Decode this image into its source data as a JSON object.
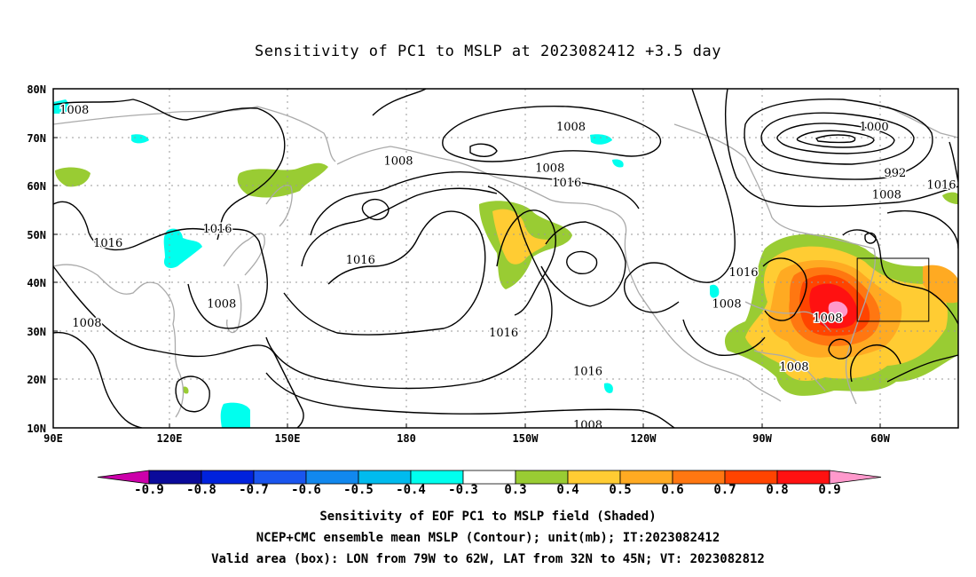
{
  "title": "Sensitivity of PC1 to MSLP at 2023082412 +3.5 day",
  "axes": {
    "lon_labels": [
      "90E",
      "120E",
      "150E",
      "180",
      "150W",
      "120W",
      "90W",
      "60W"
    ],
    "lat_labels": [
      "80N",
      "70N",
      "60N",
      "50N",
      "40N",
      "30N",
      "20N",
      "10N"
    ]
  },
  "contour_labels": [
    {
      "text": "1008",
      "lon": 95,
      "lat": 75.5
    },
    {
      "text": "1008",
      "lon": 172,
      "lat": 65
    },
    {
      "text": "1008",
      "lon": 213,
      "lat": 72
    },
    {
      "text": "1008",
      "lon": 208,
      "lat": 63.5
    },
    {
      "text": "1016",
      "lon": 212,
      "lat": 60.5
    },
    {
      "text": "1000",
      "lon": 285,
      "lat": 72
    },
    {
      "text": "992",
      "lon": 290,
      "lat": 62.5
    },
    {
      "text": "1008",
      "lon": 288,
      "lat": 58
    },
    {
      "text": "1016",
      "lon": 301,
      "lat": 60
    },
    {
      "text": "1016",
      "lon": 103,
      "lat": 48
    },
    {
      "text": "1016",
      "lon": 129,
      "lat": 51
    },
    {
      "text": "1016",
      "lon": 163,
      "lat": 44.5
    },
    {
      "text": "1016",
      "lon": 197,
      "lat": 29.5
    },
    {
      "text": "1016",
      "lon": 217,
      "lat": 21.5
    },
    {
      "text": "1016",
      "lon": 254,
      "lat": 42
    },
    {
      "text": "1008",
      "lon": 250,
      "lat": 35.5
    },
    {
      "text": "1008",
      "lon": 274,
      "lat": 32.5
    },
    {
      "text": "1008",
      "lon": 266,
      "lat": 22.5
    },
    {
      "text": "1008",
      "lon": 130,
      "lat": 35.5
    },
    {
      "text": "1008",
      "lon": 98,
      "lat": 31.5
    },
    {
      "text": "1008",
      "lon": 217,
      "lat": 10.5
    }
  ],
  "colorbar": {
    "colors": [
      "#cc00aa",
      "#0a0a9a",
      "#0022dd",
      "#1a55ee",
      "#1188ee",
      "#00bbee",
      "#00ffee",
      "#ffffff",
      "#99cc33",
      "#ffcc33",
      "#ffaa22",
      "#ff7711",
      "#ff4400",
      "#ff1111",
      "#ff99cc"
    ],
    "labels": [
      "-0.9",
      "-0.8",
      "-0.7",
      "-0.6",
      "-0.5",
      "-0.4",
      "-0.3",
      "0.3",
      "0.4",
      "0.5",
      "0.6",
      "0.7",
      "0.8",
      "0.9"
    ]
  },
  "captions": {
    "line1": "Sensitivity of EOF PC1 to MSLP field (Shaded)",
    "line2": "NCEP+CMC ensemble mean MSLP (Contour); unit(mb); IT:2023082412",
    "line3": "Valid area (box): LON from 79W to 62W, LAT from 32N to 45N; VT: 2023082812"
  },
  "valid_box": {
    "lon_from": 281,
    "lon_to": 298,
    "lat_from": 32,
    "lat_to": 45
  }
}
